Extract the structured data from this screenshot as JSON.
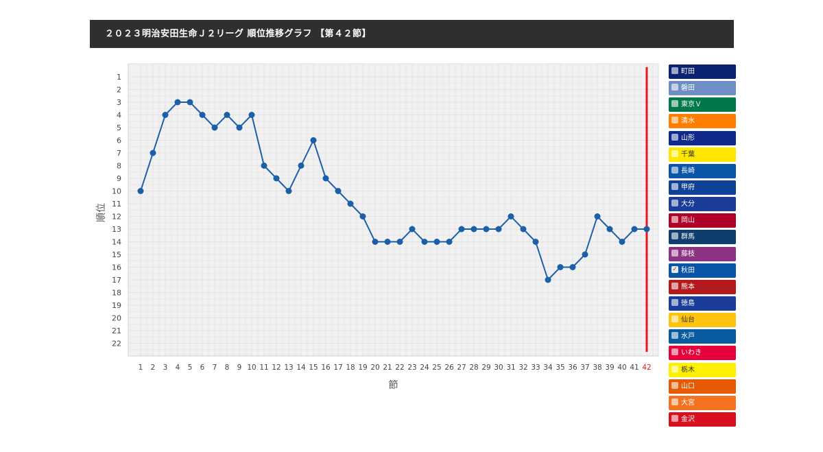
{
  "title": "２０２３明治安田生命Ｊ２リーグ 順位推移グラフ 【第４２節】",
  "chart_data": {
    "type": "line",
    "xlabel": "節",
    "ylabel": "順位",
    "x": [
      1,
      2,
      3,
      4,
      5,
      6,
      7,
      8,
      9,
      10,
      11,
      12,
      13,
      14,
      15,
      16,
      17,
      18,
      19,
      20,
      21,
      22,
      23,
      24,
      25,
      26,
      27,
      28,
      29,
      30,
      31,
      32,
      33,
      34,
      35,
      36,
      37,
      38,
      39,
      40,
      41,
      42
    ],
    "y_ticks": [
      1,
      2,
      3,
      4,
      5,
      6,
      7,
      8,
      9,
      10,
      11,
      12,
      13,
      14,
      15,
      16,
      17,
      18,
      19,
      20,
      21,
      22
    ],
    "ylim": [
      1,
      22
    ],
    "y_reversed": true,
    "grid": true,
    "highlight_x": 42,
    "highlight_color": "#e8141c",
    "series": [
      {
        "name": "秋田",
        "color": "#1a5fa8",
        "values": [
          10,
          7,
          4,
          3,
          3,
          4,
          5,
          4,
          5,
          4,
          8,
          9,
          10,
          8,
          6,
          9,
          10,
          11,
          12,
          14,
          14,
          14,
          13,
          14,
          14,
          14,
          13,
          13,
          13,
          13,
          12,
          13,
          14,
          17,
          16,
          16,
          15,
          12,
          13,
          14,
          13,
          13
        ]
      }
    ]
  },
  "legend": [
    {
      "name": "町田",
      "color": "#0a2370",
      "checked": false,
      "light": false
    },
    {
      "name": "磐田",
      "color": "#6e8fc6",
      "checked": false,
      "light": false
    },
    {
      "name": "東京Ｖ",
      "color": "#00784a",
      "checked": false,
      "light": false
    },
    {
      "name": "清水",
      "color": "#ff7d00",
      "checked": false,
      "light": false
    },
    {
      "name": "山形",
      "color": "#0f2a8c",
      "checked": false,
      "light": false
    },
    {
      "name": "千葉",
      "color": "#ffe600",
      "checked": false,
      "light": true
    },
    {
      "name": "長崎",
      "color": "#0a55a8",
      "checked": false,
      "light": false
    },
    {
      "name": "甲府",
      "color": "#0f4296",
      "checked": false,
      "light": false
    },
    {
      "name": "大分",
      "color": "#1c3c99",
      "checked": false,
      "light": false
    },
    {
      "name": "岡山",
      "color": "#b0002a",
      "checked": false,
      "light": false
    },
    {
      "name": "群馬",
      "color": "#0e3d6e",
      "checked": false,
      "light": false
    },
    {
      "name": "藤枝",
      "color": "#8c3282",
      "checked": false,
      "light": false
    },
    {
      "name": "秋田",
      "color": "#0a55a8",
      "checked": true,
      "light": false
    },
    {
      "name": "熊本",
      "color": "#b4191e",
      "checked": false,
      "light": false
    },
    {
      "name": "徳島",
      "color": "#1c3c99",
      "checked": false,
      "light": false
    },
    {
      "name": "仙台",
      "color": "#ffc30f",
      "checked": false,
      "light": true
    },
    {
      "name": "水戸",
      "color": "#0a5aa0",
      "checked": false,
      "light": false
    },
    {
      "name": "いわき",
      "color": "#e6003c",
      "checked": false,
      "light": false
    },
    {
      "name": "栃木",
      "color": "#fff000",
      "checked": false,
      "light": true
    },
    {
      "name": "山口",
      "color": "#e65a00",
      "checked": false,
      "light": false
    },
    {
      "name": "大宮",
      "color": "#f5731e",
      "checked": false,
      "light": false
    },
    {
      "name": "金沢",
      "color": "#d70f1e",
      "checked": false,
      "light": false
    }
  ]
}
